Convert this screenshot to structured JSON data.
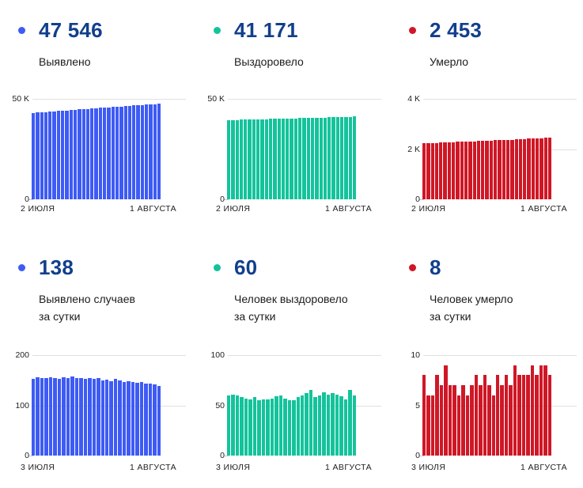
{
  "colors": {
    "stat_number": "#123f8c",
    "blue": "#3e5bf5",
    "teal": "#14c39b",
    "red": "#cf1726",
    "gridline": "#e0e0e0",
    "label_text": "#1c1c1c",
    "axis_text": "#212121",
    "background": "#ffffff"
  },
  "panels": [
    {
      "value": "47 546",
      "label_line1": "Выявлено",
      "label_line2": "",
      "color": "#3e5bf5"
    },
    {
      "value": "41 171",
      "label_line1": "Выздоровело",
      "label_line2": "",
      "color": "#14c39b"
    },
    {
      "value": "2 453",
      "label_line1": "Умерло",
      "label_line2": "",
      "color": "#cf1726"
    },
    {
      "value": "138",
      "label_line1": "Выявлено случаев",
      "label_line2": "за сутки",
      "color": "#3e5bf5"
    },
    {
      "value": "60",
      "label_line1": "Человек выздоровело",
      "label_line2": "за сутки",
      "color": "#14c39b"
    },
    {
      "value": "8",
      "label_line1": "Человек умерло",
      "label_line2": "за сутки",
      "color": "#cf1726"
    }
  ],
  "chart_data": [
    {
      "type": "bar",
      "title": "Выявлено (всего)",
      "color": "#3e5bf5",
      "ymax": 50000,
      "yticks": [
        {
          "value": 50000,
          "label": "50 K"
        },
        {
          "value": 0,
          "label": "0"
        }
      ],
      "xticks": [
        "2 ИЮЛЯ",
        "1 АВГУСТА"
      ],
      "values": [
        43024,
        43177,
        43333,
        43488,
        43642,
        43798,
        43952,
        44105,
        44261,
        44416,
        44573,
        44727,
        44882,
        45035,
        45190,
        45342,
        45496,
        45646,
        45797,
        45945,
        46097,
        46246,
        46393,
        46541,
        46687,
        46832,
        46979,
        47123,
        47266,
        47408,
        47546
      ]
    },
    {
      "type": "bar",
      "title": "Выздоровело (всего)",
      "color": "#14c39b",
      "ymax": 50000,
      "yticks": [
        {
          "value": 50000,
          "label": "50 K"
        },
        {
          "value": 0,
          "label": "0"
        }
      ],
      "xticks": [
        "2 ИЮЛЯ",
        "1 АВГУСТА"
      ],
      "values": [
        39401,
        39461,
        39522,
        39582,
        39640,
        39697,
        39753,
        39811,
        39866,
        39922,
        39978,
        40035,
        40094,
        40154,
        40211,
        40266,
        40321,
        40379,
        40439,
        40501,
        40566,
        40624,
        40684,
        40747,
        40808,
        40870,
        40931,
        40990,
        41046,
        41111,
        41171
      ]
    },
    {
      "type": "bar",
      "title": "Умерло (всего)",
      "color": "#cf1726",
      "ymax": 4000,
      "yticks": [
        {
          "value": 4000,
          "label": "4 K"
        },
        {
          "value": 2000,
          "label": "2 K"
        },
        {
          "value": 0,
          "label": "0"
        }
      ],
      "xticks": [
        "2 ИЮЛЯ",
        "1 АВГУСТА"
      ],
      "values": [
        2227,
        2235,
        2241,
        2247,
        2255,
        2262,
        2271,
        2278,
        2285,
        2291,
        2298,
        2304,
        2311,
        2319,
        2326,
        2334,
        2341,
        2347,
        2355,
        2362,
        2370,
        2377,
        2386,
        2394,
        2402,
        2410,
        2419,
        2427,
        2436,
        2445,
        2453
      ]
    },
    {
      "type": "bar",
      "title": "Выявлено случаев за сутки",
      "color": "#3e5bf5",
      "ymax": 200,
      "yticks": [
        {
          "value": 200,
          "label": "200"
        },
        {
          "value": 100,
          "label": "100"
        },
        {
          "value": 0,
          "label": "0"
        }
      ],
      "xticks": [
        "3 ИЮЛЯ",
        "1 АВГУСТА"
      ],
      "values": [
        153,
        156,
        155,
        154,
        156,
        154,
        153,
        156,
        155,
        157,
        154,
        155,
        153,
        155,
        152,
        154,
        150,
        151,
        148,
        152,
        149,
        147,
        148,
        146,
        145,
        147,
        144,
        143,
        142,
        138
      ]
    },
    {
      "type": "bar",
      "title": "Человек выздоровело за сутки",
      "color": "#14c39b",
      "ymax": 100,
      "yticks": [
        {
          "value": 100,
          "label": "100"
        },
        {
          "value": 50,
          "label": "50"
        },
        {
          "value": 0,
          "label": "0"
        }
      ],
      "xticks": [
        "3 ИЮЛЯ",
        "1 АВГУСТА"
      ],
      "values": [
        60,
        61,
        60,
        58,
        57,
        56,
        58,
        55,
        56,
        56,
        57,
        59,
        60,
        57,
        55,
        55,
        58,
        60,
        62,
        65,
        58,
        60,
        63,
        61,
        62,
        61,
        59,
        56,
        65,
        60
      ]
    },
    {
      "type": "bar",
      "title": "Человек умерло за сутки",
      "color": "#cf1726",
      "ymax": 10,
      "yticks": [
        {
          "value": 10,
          "label": "10"
        },
        {
          "value": 5,
          "label": "5"
        },
        {
          "value": 0,
          "label": "0"
        }
      ],
      "xticks": [
        "3 ИЮЛЯ",
        "1 АВГУСТА"
      ],
      "values": [
        8,
        6,
        6,
        8,
        7,
        9,
        7,
        7,
        6,
        7,
        6,
        7,
        8,
        7,
        8,
        7,
        6,
        8,
        7,
        8,
        7,
        9,
        8,
        8,
        8,
        9,
        8,
        9,
        9,
        8
      ]
    }
  ]
}
